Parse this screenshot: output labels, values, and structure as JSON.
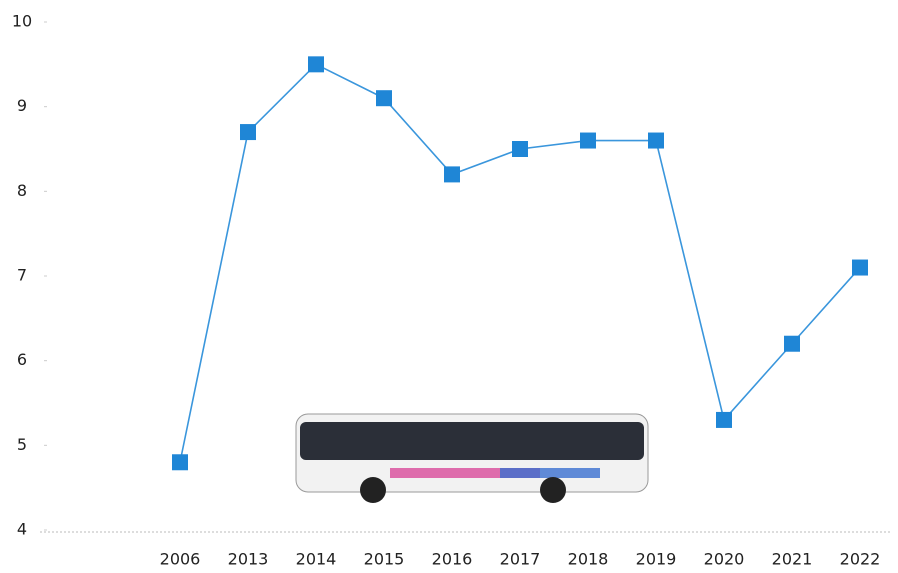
{
  "chart_data": {
    "type": "line",
    "categories": [
      "2006",
      "2013",
      "2014",
      "2015",
      "2016",
      "2017",
      "2018",
      "2019",
      "2020",
      "2021",
      "2022"
    ],
    "values": [
      4.8,
      8.7,
      9.5,
      9.1,
      8.2,
      8.5,
      8.6,
      8.6,
      5.3,
      6.2,
      7.1
    ],
    "color": "#1f86d6",
    "ylim": [
      4,
      10
    ],
    "yticks": [
      4,
      5,
      6,
      7,
      8,
      9,
      10
    ],
    "grid": false
  }
}
